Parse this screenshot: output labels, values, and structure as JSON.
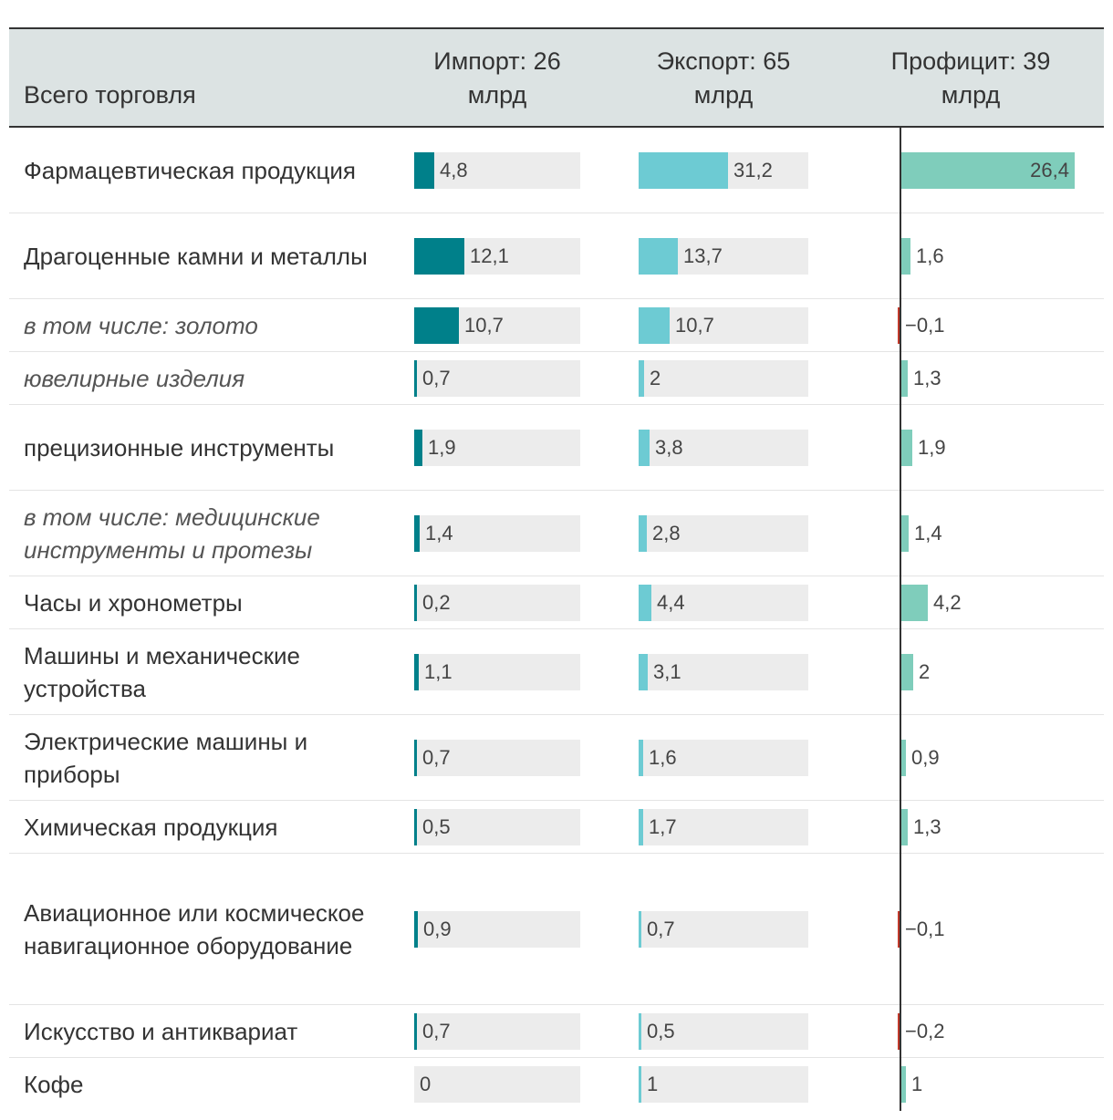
{
  "chart_data": {
    "type": "table",
    "columns": {
      "label": "Всего торговля",
      "import": "Импорт: 26 млрд",
      "export": "Экспорт: 65 млрд",
      "surplus": "Профицит: 39 млрд"
    },
    "rows": [
      {
        "label": "Фармацевтическая продукция",
        "italic": false,
        "import": 4.8,
        "export": 31.2,
        "surplus": 26.4,
        "import_text": "4,8",
        "export_text": "31,2",
        "surplus_text": "26,4"
      },
      {
        "label": "Драгоценные камни и металлы",
        "italic": false,
        "import": 12.1,
        "export": 13.7,
        "surplus": 1.6,
        "import_text": "12,1",
        "export_text": "13,7",
        "surplus_text": "1,6"
      },
      {
        "label": "в том числе: золото",
        "italic": true,
        "import": 10.7,
        "export": 10.7,
        "surplus": -0.1,
        "import_text": "10,7",
        "export_text": "10,7",
        "surplus_text": "−0,1"
      },
      {
        "label": "ювелирные изделия",
        "italic": true,
        "import": 0.7,
        "export": 2,
        "surplus": 1.3,
        "import_text": "0,7",
        "export_text": "2",
        "surplus_text": "1,3"
      },
      {
        "label": "прецизионные инструменты",
        "italic": false,
        "import": 1.9,
        "export": 3.8,
        "surplus": 1.9,
        "import_text": "1,9",
        "export_text": "3,8",
        "surplus_text": "1,9"
      },
      {
        "label": "в том числе: медицинские инструменты и протезы",
        "italic": true,
        "import": 1.4,
        "export": 2.8,
        "surplus": 1.4,
        "import_text": "1,4",
        "export_text": "2,8",
        "surplus_text": "1,4"
      },
      {
        "label": "Часы и хронометры",
        "italic": false,
        "import": 0.2,
        "export": 4.4,
        "surplus": 4.2,
        "import_text": "0,2",
        "export_text": "4,4",
        "surplus_text": "4,2"
      },
      {
        "label": "Машины и механические устройства",
        "italic": false,
        "import": 1.1,
        "export": 3.1,
        "surplus": 2,
        "import_text": "1,1",
        "export_text": "3,1",
        "surplus_text": "2"
      },
      {
        "label": "Электрические машины и приборы",
        "italic": false,
        "import": 0.7,
        "export": 1.6,
        "surplus": 0.9,
        "import_text": "0,7",
        "export_text": "1,6",
        "surplus_text": "0,9"
      },
      {
        "label": "Химическая продукция",
        "italic": false,
        "import": 0.5,
        "export": 1.7,
        "surplus": 1.3,
        "import_text": "0,5",
        "export_text": "1,7",
        "surplus_text": "1,3"
      },
      {
        "label": "Авиационное или космическое навигационное оборудование",
        "italic": false,
        "import": 0.9,
        "export": 0.7,
        "surplus": -0.1,
        "import_text": "0,9",
        "export_text": "0,7",
        "surplus_text": "−0,1"
      },
      {
        "label": "Искусство и антиквариат",
        "italic": false,
        "import": 0.7,
        "export": 0.5,
        "surplus": -0.2,
        "import_text": "0,7",
        "export_text": "0,5",
        "surplus_text": "−0,2"
      },
      {
        "label": "Кофе",
        "italic": false,
        "import": 0,
        "export": 1,
        "surplus": 1,
        "import_text": "0",
        "export_text": "1",
        "surplus_text": "1"
      }
    ],
    "import_max": 40,
    "export_max": 59,
    "surplus_max": 26.4
  },
  "colors": {
    "import": "#00808a",
    "export": "#6dcbd3",
    "surplus_positive": "#7fcdbb",
    "surplus_negative": "#c0392b",
    "track": "#ececec",
    "header_bg": "#dce3e3"
  }
}
